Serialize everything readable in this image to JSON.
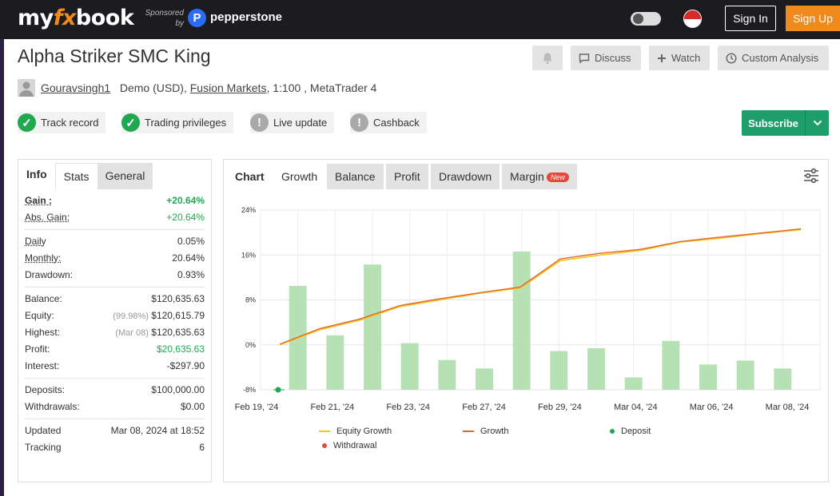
{
  "nav": {
    "logo_a": "my",
    "logo_b": "fx",
    "logo_c": "book",
    "sponsored": "Sponsored by",
    "sponsor_mark": "P",
    "sponsor": "pepperstone",
    "sign_in": "Sign In",
    "sign_up": "Sign Up"
  },
  "header": {
    "title": "Alpha Striker SMC King",
    "discuss": "Discuss",
    "watch": "Watch",
    "custom_analysis": "Custom Analysis"
  },
  "account": {
    "user": "Gouravsingh1",
    "type": "Demo (USD),",
    "broker": "Fusion Markets",
    "rest": ", 1:100 , MetaTrader 4"
  },
  "badges": [
    {
      "label": "Track record",
      "status": "ok"
    },
    {
      "label": "Trading privileges",
      "status": "ok"
    },
    {
      "label": "Live update",
      "status": "warn"
    },
    {
      "label": "Cashback",
      "status": "warn"
    }
  ],
  "subscribe": "Subscribe",
  "info_tabs": [
    "Info",
    "Stats",
    "General"
  ],
  "stats": {
    "gain_k": "Gain :",
    "gain_v": "+20.64%",
    "abs_gain_k": "Abs. Gain:",
    "abs_gain_v": "+20.64%",
    "daily_k": "Daily",
    "daily_v": "0.05%",
    "monthly_k": "Monthly:",
    "monthly_v": "20.64%",
    "drawdown_k": "Drawdown:",
    "drawdown_v": "0.93%",
    "balance_k": "Balance:",
    "balance_v": "$120,635.63",
    "equity_k": "Equity:",
    "equity_note": "(99.98%)",
    "equity_v": "$120,615.79",
    "highest_k": "Highest:",
    "highest_note": "(Mar 08)",
    "highest_v": "$120,635.63",
    "profit_k": "Profit:",
    "profit_v": "$20,635.63",
    "interest_k": "Interest:",
    "interest_v": "-$297.90",
    "deposits_k": "Deposits:",
    "deposits_v": "$100,000.00",
    "withdrawals_k": "Withdrawals:",
    "withdrawals_v": "$0.00",
    "updated_k": "Updated",
    "updated_v": "Mar 08, 2024 at 18:52",
    "tracking_k": "Tracking",
    "tracking_v": "6"
  },
  "chart_tabs": {
    "chart": "Chart",
    "growth": "Growth",
    "balance": "Balance",
    "profit": "Profit",
    "drawdown": "Drawdown",
    "margin": "Margin",
    "new": "New"
  },
  "colors": {
    "bar": "#b6e1b5",
    "growth_line": "#e0662b",
    "equity_line": "#f3c623",
    "deposit": "#1fa84f",
    "withdrawal": "#e34a3c"
  },
  "chart_data": {
    "type": "bar",
    "ylim": [
      -8,
      24
    ],
    "y_ticks": [
      "24%",
      "16%",
      "8%",
      "0%",
      "-8%"
    ],
    "x_tick_labels": [
      "Feb 19, '24",
      "Feb 21, '24",
      "Feb 23, '24",
      "Feb 27, '24",
      "Feb 29, '24",
      "Mar 04, '24",
      "Mar 06, '24",
      "Mar 08, '24"
    ],
    "grid": true,
    "bars": [
      10.5,
      1.7,
      14.3,
      0.3,
      -2.7,
      -4.2,
      16.6,
      -1.1,
      -0.6,
      -5.8,
      0.7,
      -3.5,
      -2.8,
      -4.2
    ],
    "series": [
      {
        "name": "Equity Growth",
        "values": [
          0.0,
          2.7,
          4.4,
          6.8,
          8.0,
          9.2,
          10.1,
          15.0,
          16.0,
          16.8,
          18.3,
          19.0,
          19.8,
          20.5
        ]
      },
      {
        "name": "Growth",
        "values": [
          0.1,
          2.9,
          4.6,
          7.0,
          8.2,
          9.3,
          10.3,
          15.3,
          16.3,
          17.0,
          18.4,
          19.2,
          19.9,
          20.64
        ]
      }
    ],
    "deposit_point": -8,
    "legend": [
      "Equity Growth",
      "Growth",
      "Deposit",
      "Withdrawal"
    ],
    "legend_position": "bottom"
  }
}
